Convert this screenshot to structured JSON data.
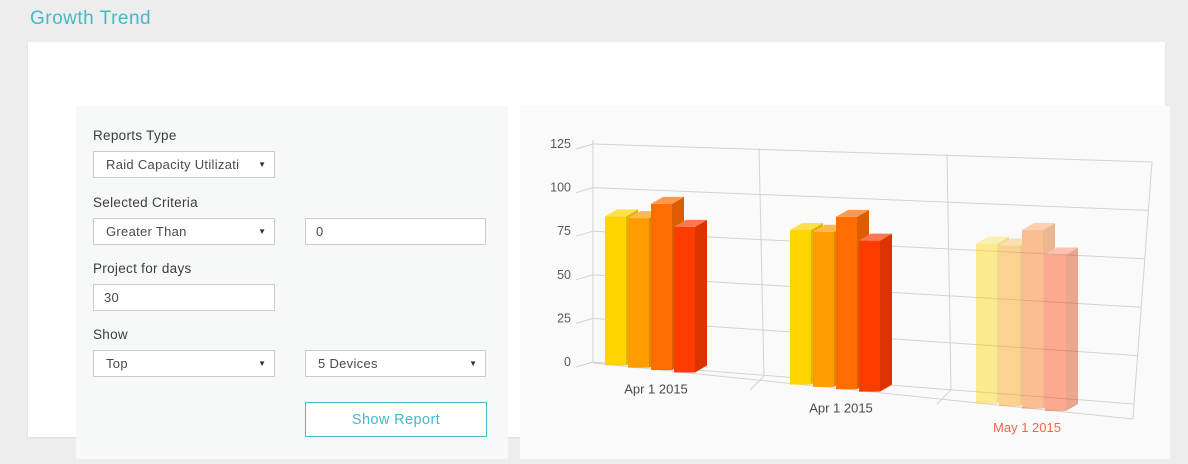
{
  "page": {
    "title": "Growth Trend",
    "accent_color": "#45B9C6"
  },
  "form": {
    "reports_type": {
      "label": "Reports Type",
      "value": "Raid Capacity Utilizati"
    },
    "selected_criteria": {
      "label": "Selected Criteria",
      "operator": "Greater Than",
      "threshold": "0"
    },
    "project_for_days": {
      "label": "Project for days",
      "value": "30"
    },
    "show": {
      "label": "Show",
      "mode": "Top",
      "count": "5 Devices"
    },
    "submit_label": "Show Report"
  },
  "chart_data": {
    "type": "bar",
    "style": "3d-column-groups",
    "categories": [
      "Apr 1 2015",
      "Apr 1 2015",
      "May 1 2015"
    ],
    "series": [
      {
        "color": "#FFD400",
        "values": [
          85,
          85,
          85
        ]
      },
      {
        "color": "#FF9D00",
        "values": [
          85,
          85,
          85
        ]
      },
      {
        "color": "#FF6C00",
        "values": [
          94,
          94,
          94
        ]
      },
      {
        "color": "#FF3C00",
        "values": [
          82,
          82,
          82
        ]
      }
    ],
    "yticks": [
      0,
      25,
      50,
      75,
      100,
      125
    ],
    "ylim": [
      0,
      125
    ],
    "legend": "none",
    "grid": true,
    "projected_group_index": 2,
    "projected_opacity": 0.42,
    "category_label_colors": [
      "#4A4A4A",
      "#4A4A4A",
      "#F2654E"
    ],
    "tick_label_color": "#58595B",
    "grid_color": "#D2D2D2"
  }
}
